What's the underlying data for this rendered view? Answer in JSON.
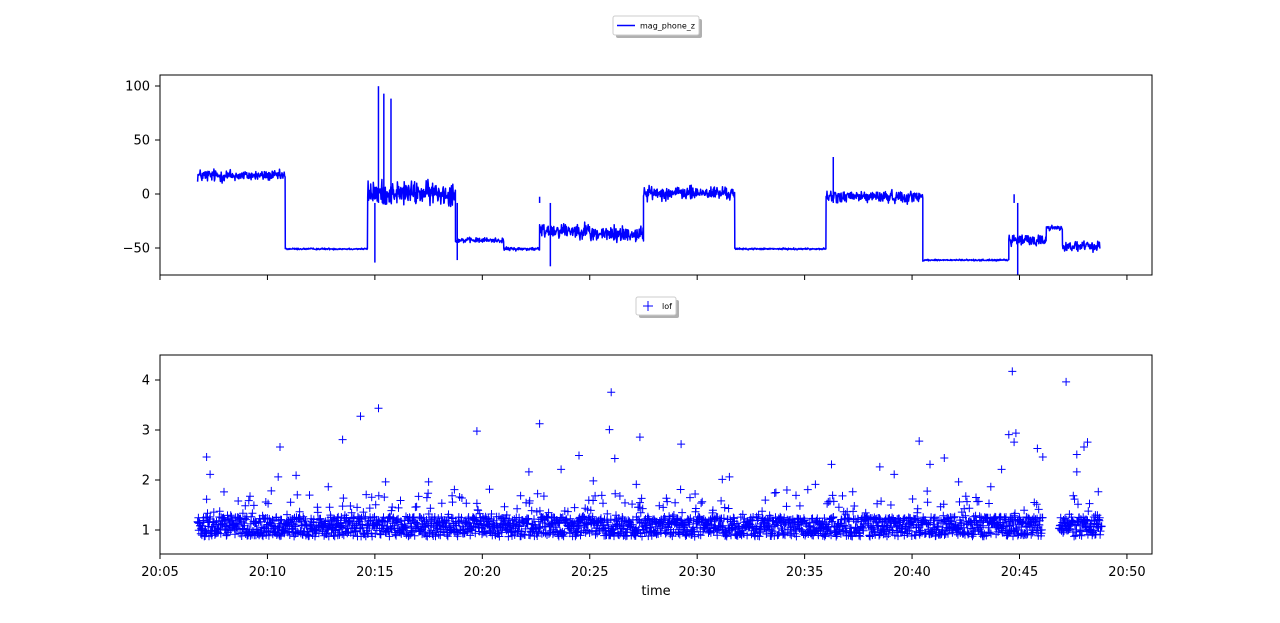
{
  "chart_data": [
    {
      "type": "line",
      "legend": "mag_phone_z",
      "legend_position": "top-center",
      "color": "#0000ff",
      "grid": false,
      "xlabel": "",
      "ylabel": "",
      "ylim": [
        -58,
        103
      ],
      "yticks": [
        "100",
        "50",
        "0",
        "−50"
      ],
      "ytick_values": [
        100,
        50,
        0,
        -50
      ],
      "xlim": [
        "20:05:00",
        "20:51:10"
      ],
      "series": [
        {
          "name": "mag_phone_z",
          "segments": [
            {
              "from": "20:06:45",
              "to": "20:08:30",
              "level": 22,
              "noise": 8
            },
            {
              "from": "20:08:30",
              "to": "20:10:50",
              "level": 22,
              "noise": 6
            },
            {
              "from": "20:10:50",
              "to": "20:14:40",
              "level": -37,
              "noise": 1
            },
            {
              "from": "20:14:40",
              "to": "20:18:45",
              "level": 8,
              "noise": 14
            },
            {
              "from": "20:18:45",
              "to": "20:21:00",
              "level": -30,
              "noise": 3
            },
            {
              "from": "20:21:00",
              "to": "20:22:40",
              "level": -37,
              "noise": 2
            },
            {
              "from": "20:22:40",
              "to": "20:25:00",
              "level": -22,
              "noise": 9
            },
            {
              "from": "20:25:00",
              "to": "20:27:30",
              "level": -25,
              "noise": 10
            },
            {
              "from": "20:27:30",
              "to": "20:31:45",
              "level": 8,
              "noise": 8
            },
            {
              "from": "20:31:45",
              "to": "20:36:00",
              "level": -37,
              "noise": 1
            },
            {
              "from": "20:36:00",
              "to": "20:40:30",
              "level": 5,
              "noise": 7
            },
            {
              "from": "20:40:30",
              "to": "20:44:30",
              "level": -46,
              "noise": 1
            },
            {
              "from": "20:44:30",
              "to": "20:46:15",
              "level": -30,
              "noise": 7
            },
            {
              "from": "20:46:15",
              "to": "20:47:00",
              "level": -20,
              "noise": 3
            },
            {
              "from": "20:47:00",
              "to": "20:48:45",
              "level": -35,
              "noise": 6
            }
          ],
          "spikes": [
            {
              "x": "20:15:10",
              "y": 94
            },
            {
              "x": "20:15:25",
              "y": 88
            },
            {
              "x": "20:15:45",
              "y": 84
            },
            {
              "x": "20:15:00",
              "y": -48
            },
            {
              "x": "20:36:20",
              "y": 37
            },
            {
              "x": "20:44:45",
              "y": 7
            },
            {
              "x": "20:44:55",
              "y": -58
            },
            {
              "x": "20:22:40",
              "y": 5
            },
            {
              "x": "20:18:50",
              "y": -46
            },
            {
              "x": "20:23:10",
              "y": -51
            }
          ]
        }
      ]
    },
    {
      "type": "scatter",
      "legend": "lof",
      "legend_position": "top-center",
      "marker": "+",
      "color": "#0000ff",
      "grid": false,
      "xlabel": "time",
      "ylabel": "",
      "ylim": [
        0.5,
        4.5
      ],
      "yticks": [
        "4",
        "3",
        "2",
        "1"
      ],
      "ytick_values": [
        4,
        3,
        2,
        1
      ],
      "xlim": [
        "20:05:00",
        "20:51:10"
      ],
      "xticks": [
        "20:05",
        "20:10",
        "20:15",
        "20:20",
        "20:25",
        "20:30",
        "20:35",
        "20:40",
        "20:45",
        "20:50"
      ],
      "baseline": {
        "from": "20:06:45",
        "to": "20:48:50",
        "gap_from": "20:46:05",
        "gap_to": "20:46:50",
        "range": [
          0.85,
          1.25
        ]
      },
      "points": [
        {
          "x": "20:07:10",
          "y": 2.45
        },
        {
          "x": "20:07:20",
          "y": 2.1
        },
        {
          "x": "20:10:35",
          "y": 2.65
        },
        {
          "x": "20:13:30",
          "y": 2.8
        },
        {
          "x": "20:14:20",
          "y": 3.27
        },
        {
          "x": "20:15:10",
          "y": 3.43
        },
        {
          "x": "20:19:45",
          "y": 2.97
        },
        {
          "x": "20:22:40",
          "y": 3.12
        },
        {
          "x": "20:25:55",
          "y": 3.0
        },
        {
          "x": "20:26:00",
          "y": 3.75
        },
        {
          "x": "20:26:10",
          "y": 2.42
        },
        {
          "x": "20:27:20",
          "y": 2.85
        },
        {
          "x": "20:29:15",
          "y": 2.71
        },
        {
          "x": "20:36:15",
          "y": 2.3
        },
        {
          "x": "20:38:30",
          "y": 2.25
        },
        {
          "x": "20:40:20",
          "y": 2.77
        },
        {
          "x": "20:40:50",
          "y": 2.3
        },
        {
          "x": "20:41:30",
          "y": 2.43
        },
        {
          "x": "20:44:30",
          "y": 2.9
        },
        {
          "x": "20:44:40",
          "y": 4.17
        },
        {
          "x": "20:44:45",
          "y": 2.75
        },
        {
          "x": "20:44:50",
          "y": 2.93
        },
        {
          "x": "20:45:50",
          "y": 2.62
        },
        {
          "x": "20:46:05",
          "y": 2.45
        },
        {
          "x": "20:47:10",
          "y": 3.96
        },
        {
          "x": "20:47:40",
          "y": 2.5
        },
        {
          "x": "20:48:00",
          "y": 2.65
        },
        {
          "x": "20:48:10",
          "y": 2.75
        },
        {
          "x": "20:47:40",
          "y": 2.15
        },
        {
          "x": "20:07:10",
          "y": 1.6
        },
        {
          "x": "20:10:30",
          "y": 2.05
        },
        {
          "x": "20:11:20",
          "y": 2.08
        },
        {
          "x": "20:12:50",
          "y": 1.85
        },
        {
          "x": "20:15:30",
          "y": 1.95
        },
        {
          "x": "20:17:30",
          "y": 1.95
        },
        {
          "x": "20:20:20",
          "y": 1.8
        },
        {
          "x": "20:22:10",
          "y": 2.15
        },
        {
          "x": "20:23:40",
          "y": 2.2
        },
        {
          "x": "20:24:30",
          "y": 2.48
        },
        {
          "x": "20:25:10",
          "y": 1.97
        },
        {
          "x": "20:27:10",
          "y": 1.9
        },
        {
          "x": "20:31:10",
          "y": 2.0
        },
        {
          "x": "20:31:30",
          "y": 2.05
        },
        {
          "x": "20:35:30",
          "y": 1.9
        },
        {
          "x": "20:39:10",
          "y": 2.1
        },
        {
          "x": "20:42:10",
          "y": 1.95
        },
        {
          "x": "20:43:40",
          "y": 1.85
        },
        {
          "x": "20:44:10",
          "y": 2.2
        },
        {
          "x": "20:48:40",
          "y": 1.75
        }
      ]
    }
  ]
}
